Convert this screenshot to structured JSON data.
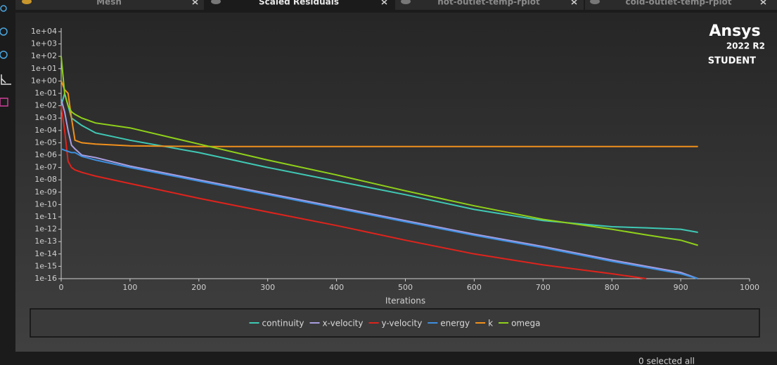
{
  "tabs": [
    {
      "label": "Mesh"
    },
    {
      "label": "Scaled Residuals"
    },
    {
      "label": "hot-outlet-temp-rplot"
    },
    {
      "label": "cold-outlet-temp-rplot"
    }
  ],
  "logo": {
    "name": "Ansys",
    "version": "2022 R2",
    "edition": "STUDENT"
  },
  "status": "0 selected all",
  "chart_data": {
    "type": "line",
    "xlabel": "Iterations",
    "log_y": true,
    "x": [
      0,
      5,
      10,
      15,
      20,
      30,
      50,
      100,
      200,
      300,
      400,
      500,
      600,
      700,
      800,
      850,
      900,
      925
    ],
    "xlim": [
      0,
      1000
    ],
    "xticks": [
      0,
      100,
      200,
      300,
      400,
      500,
      600,
      700,
      800,
      900,
      1000
    ],
    "ylim": [
      1e-16,
      10000
    ],
    "yticks": [
      {
        "value": 10000,
        "label": "1e+04"
      },
      {
        "value": 1000,
        "label": "1e+03"
      },
      {
        "value": 100,
        "label": "1e+02"
      },
      {
        "value": 10,
        "label": "1e+01"
      },
      {
        "value": 1,
        "label": "1e+00"
      },
      {
        "value": 0.1,
        "label": "1e-01"
      },
      {
        "value": 0.01,
        "label": "1e-02"
      },
      {
        "value": 0.001,
        "label": "1e-03"
      },
      {
        "value": 0.0001,
        "label": "1e-04"
      },
      {
        "value": 1e-05,
        "label": "1e-05"
      },
      {
        "value": 1e-06,
        "label": "1e-06"
      },
      {
        "value": 1e-07,
        "label": "1e-07"
      },
      {
        "value": 1e-08,
        "label": "1e-08"
      },
      {
        "value": 1e-09,
        "label": "1e-09"
      },
      {
        "value": 1e-10,
        "label": "1e-10"
      },
      {
        "value": 1e-11,
        "label": "1e-11"
      },
      {
        "value": 1e-12,
        "label": "1e-12"
      },
      {
        "value": 1e-13,
        "label": "1e-13"
      },
      {
        "value": 1e-14,
        "label": "1e-14"
      },
      {
        "value": 1e-15,
        "label": "1e-15"
      },
      {
        "value": 1e-16,
        "label": "1e-16"
      }
    ],
    "series": [
      {
        "name": "continuity",
        "color": "#3fc9b5",
        "values": [
          0.01,
          0.1,
          0.01,
          0.001,
          0.00063,
          0.00025,
          6.3e-05,
          1.6e-05,
          1.6e-06,
          1e-07,
          7.9e-09,
          6.3e-10,
          4e-11,
          5e-12,
          1.6e-12,
          1.3e-12,
          1e-12,
          5.6e-13
        ]
      },
      {
        "name": "x-velocity",
        "color": "#a99ee0",
        "values": [
          0.032,
          0.0032,
          0.0001,
          6.3e-06,
          3.2e-06,
          1e-06,
          6.3e-07,
          1.3e-07,
          1e-08,
          7.9e-10,
          6.3e-11,
          5e-12,
          4e-13,
          4e-14,
          3.2e-15,
          1e-15,
          3.2e-16,
          1e-16
        ]
      },
      {
        "name": "y-velocity",
        "color": "#e0231c",
        "values": [
          0.01,
          0.0001,
          3.2e-07,
          1e-07,
          6.3e-08,
          4e-08,
          2e-08,
          5e-09,
          3.2e-10,
          2.5e-11,
          2e-12,
          1.3e-13,
          1e-14,
          1.3e-15,
          2.5e-16,
          1e-16,
          null,
          null
        ]
      },
      {
        "name": "energy",
        "color": "#3d8fe0",
        "values": [
          3.2e-06,
          2.5e-06,
          2e-06,
          1.6e-06,
          1.6e-06,
          7.9e-07,
          4e-07,
          1e-07,
          7.9e-09,
          6.3e-10,
          5e-11,
          4e-12,
          3.2e-13,
          3.2e-14,
          2.5e-15,
          7.9e-16,
          2.5e-16,
          1e-16
        ]
      },
      {
        "name": "k",
        "color": "#f0901c",
        "values": [
          1,
          0.2,
          0.1,
          0.001,
          1.6e-05,
          1e-05,
          7.9e-06,
          5.6e-06,
          5e-06,
          5e-06,
          5e-06,
          5e-06,
          5e-06,
          5e-06,
          5e-06,
          5e-06,
          5e-06,
          5e-06
        ]
      },
      {
        "name": "omega",
        "color": "#8fd11a",
        "values": [
          100,
          0.1,
          0.01,
          0.0032,
          0.002,
          0.001,
          0.0004,
          0.00016,
          7.9e-06,
          4e-07,
          2.5e-08,
          1.3e-09,
          7.9e-11,
          6.3e-12,
          1e-12,
          3.5e-13,
          1.3e-13,
          5e-14
        ]
      }
    ]
  }
}
